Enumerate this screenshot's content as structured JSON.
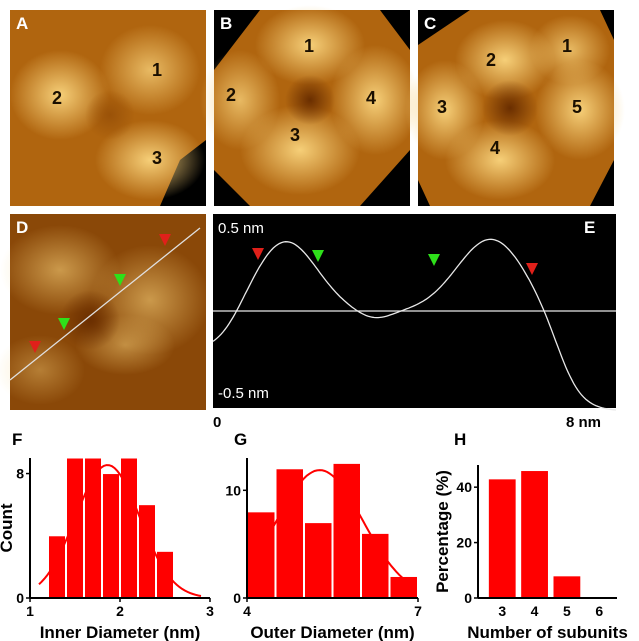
{
  "afm": {
    "A": {
      "label": "A",
      "subunits": [
        "1",
        "2",
        "3"
      ]
    },
    "B": {
      "label": "B",
      "subunits": [
        "1",
        "2",
        "3",
        "4"
      ]
    },
    "C": {
      "label": "C",
      "subunits": [
        "1",
        "2",
        "3",
        "4",
        "5"
      ]
    },
    "D": {
      "label": "D"
    }
  },
  "profile": {
    "label": "E",
    "top_label": "0.5 nm",
    "bottom_label": "-0.5 nm",
    "x_start": "0",
    "x_end": "8 nm",
    "colors": {
      "red_marker": "#e0201a",
      "green_marker": "#2ee01a",
      "curve": "#e8e8e8"
    }
  },
  "chart_data": [
    {
      "panel": "F",
      "type": "bar",
      "xlabel": "Inner Diameter (nm)",
      "ylabel": "Count",
      "xticks": [
        "1",
        "2",
        "3"
      ],
      "yticks": [
        "0",
        "8"
      ],
      "xlim": [
        1,
        3
      ],
      "ylim": [
        0,
        9
      ],
      "x": [
        1.3,
        1.5,
        1.7,
        1.9,
        2.1,
        2.3,
        2.5
      ],
      "values": [
        4,
        9,
        9,
        8,
        9,
        6,
        3
      ],
      "fit": "gaussian",
      "color": "#ff0000"
    },
    {
      "panel": "G",
      "type": "bar",
      "xlabel": "Outer Diameter (nm)",
      "ylabel": "",
      "xticks": [
        "4",
        "7"
      ],
      "yticks": [
        "0",
        "10"
      ],
      "xlim": [
        4,
        7
      ],
      "ylim": [
        0,
        13
      ],
      "x": [
        4.25,
        4.75,
        5.25,
        5.75,
        6.25,
        6.75
      ],
      "values": [
        8,
        12,
        7,
        12.5,
        6,
        2
      ],
      "fit": "gaussian",
      "color": "#ff0000"
    },
    {
      "panel": "H",
      "type": "bar",
      "xlabel": "Number of subunits",
      "ylabel": "Percentage (%)",
      "categories": [
        "3",
        "4",
        "5",
        "6"
      ],
      "yticks": [
        "0",
        "20",
        "40"
      ],
      "ylim": [
        0,
        48
      ],
      "values": [
        43,
        46,
        8,
        0
      ],
      "color": "#ff0000"
    }
  ]
}
